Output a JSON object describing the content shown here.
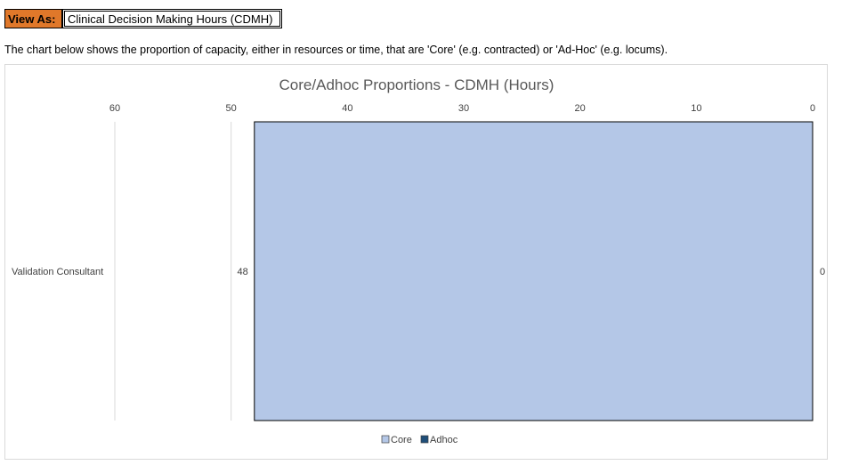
{
  "view_as": {
    "label": "View As:",
    "value": "Clinical Decision Making Hours (CDMH)"
  },
  "description": "The chart below shows the proportion of capacity, either in resources or time, that are 'Core' (e.g. contracted) or 'Ad-Hoc' (e.g. locums).",
  "chart_data": {
    "type": "bar",
    "orientation": "horizontal",
    "stacked": true,
    "x_reversed": true,
    "title": "Core/Adhoc Proportions - CDMH (Hours)",
    "categories": [
      "Validation Consultant"
    ],
    "xlim": [
      0,
      60
    ],
    "ticks": [
      "60",
      "50",
      "40",
      "30",
      "20",
      "10",
      "0"
    ],
    "tick_values": [
      60,
      50,
      40,
      30,
      20,
      10,
      0
    ],
    "grid": true,
    "series": [
      {
        "name": "Core",
        "values": [
          48
        ],
        "color": "#b4c7e7",
        "label": "48"
      },
      {
        "name": "Adhoc",
        "values": [
          0
        ],
        "color": "#1f4e79",
        "label": "0"
      }
    ],
    "legend_position": "bottom"
  }
}
